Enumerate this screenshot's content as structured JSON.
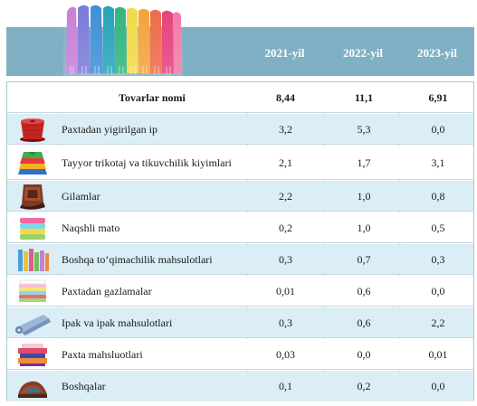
{
  "header": {
    "years": [
      "2021-yil",
      "2022-yil",
      "2023-yil"
    ]
  },
  "table": {
    "total": {
      "name": "Tovarlar nomi",
      "v2021": "8,44",
      "v2022": "11,1",
      "v2023": "6,91"
    },
    "rows": [
      {
        "name": "Paxtadan yigirilgan ip",
        "icon": "yarn-spool-icon",
        "v2021": "3,2",
        "v2022": "5,3",
        "v2023": "0,0"
      },
      {
        "name": "Tayyor trikotaj va tikuvchilik kiyimlari",
        "icon": "folded-clothes-icon",
        "v2021": "2,1",
        "v2022": "1,7",
        "v2023": "3,1"
      },
      {
        "name": "Gilamlar",
        "icon": "carpet-icon",
        "v2021": "2,2",
        "v2022": "1,0",
        "v2023": "0,8"
      },
      {
        "name": "Naqshli mato",
        "icon": "patterned-fabric-icon",
        "v2021": "0,2",
        "v2022": "1,0",
        "v2023": "0,5"
      },
      {
        "name": "Boshqa to‘qimachilik mahsulotlari",
        "icon": "textile-rolls-icon",
        "v2021": "0,3",
        "v2022": "0,7",
        "v2023": "0,3"
      },
      {
        "name": "Paxtadan gazlamalar",
        "icon": "cotton-fabric-stack-icon",
        "v2021": "0,01",
        "v2022": "0,6",
        "v2023": "0,0"
      },
      {
        "name": "Ipak va ipak mahsulotlari",
        "icon": "silk-roll-icon",
        "v2021": "0,3",
        "v2022": "0,6",
        "v2023": "2,2"
      },
      {
        "name": "Paxta mahsluotlari",
        "icon": "cotton-products-icon",
        "v2021": "0,03",
        "v2022": "0,0",
        "v2023": "0,01"
      },
      {
        "name": "Boshqalar",
        "icon": "fabric-pile-icon",
        "v2021": "0,1",
        "v2022": "0,2",
        "v2023": "0,0"
      }
    ]
  },
  "colors": {
    "header": "#7fb0c4",
    "row_alt": "#dbedf5"
  }
}
